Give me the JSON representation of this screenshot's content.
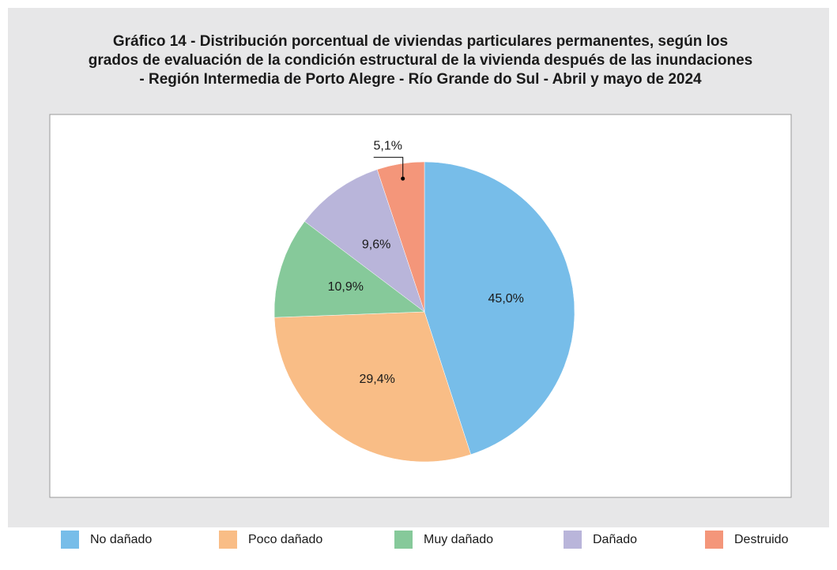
{
  "chart_data": {
    "type": "pie",
    "title": [
      "Gráfico 14 - Distribución porcentual de viviendas particulares permanentes, según los",
      "grados de evaluación de la condición estructural de la vivienda después de las inundaciones",
      "- Región Intermedia de Porto Alegre - Río Grande do Sul - Abril y mayo de 2024"
    ],
    "categories": [
      "No dañado",
      "Poco dañado",
      "Muy dañado",
      "Dañado",
      "Destruido"
    ],
    "values": [
      45.0,
      29.4,
      10.9,
      9.6,
      5.1
    ],
    "value_labels": [
      "45,0%",
      "29,4%",
      "10,9%",
      "9,6%",
      "5,1%"
    ],
    "colors": [
      "#77bde9",
      "#f9bd86",
      "#86c99a",
      "#b9b5da",
      "#f4967a"
    ],
    "legend": "bottom"
  }
}
